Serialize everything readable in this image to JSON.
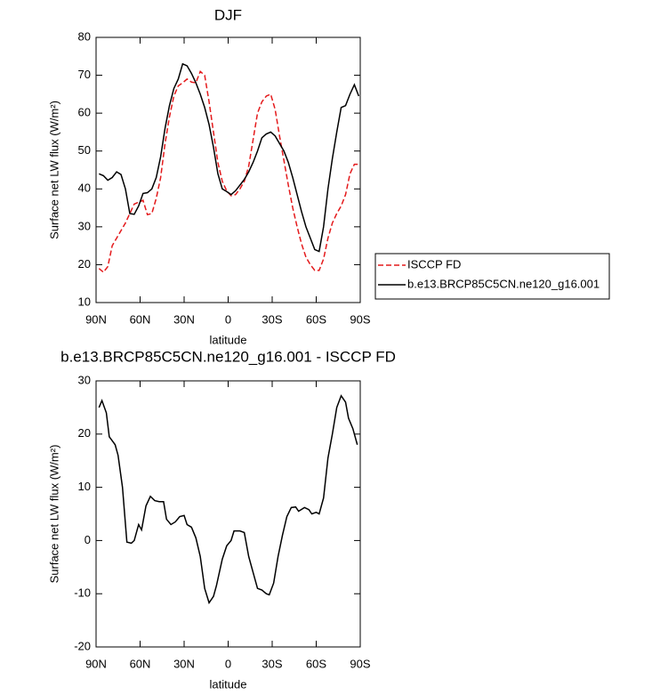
{
  "chart_data": [
    {
      "type": "line",
      "title": "DJF",
      "xlabel": "latitude",
      "ylabel": "Surface net LW flux (W/m²)",
      "xlim": [
        90,
        -90
      ],
      "xticks": [
        {
          "value": 90,
          "label": "90N"
        },
        {
          "value": 60,
          "label": "60N"
        },
        {
          "value": 30,
          "label": "30N"
        },
        0,
        {
          "value": -30,
          "label": "30S"
        },
        {
          "value": -60,
          "label": "60S"
        },
        {
          "value": -90,
          "label": "90S"
        }
      ],
      "ylim": [
        10,
        80
      ],
      "yticks": [
        10,
        20,
        30,
        40,
        50,
        60,
        70,
        80
      ],
      "legend": "right",
      "x": [
        88,
        85,
        82,
        79,
        76,
        73,
        70,
        67,
        64,
        61,
        58,
        55,
        52,
        49,
        46,
        43,
        40,
        37,
        34,
        31,
        28,
        25,
        22,
        19,
        16,
        13,
        10,
        7,
        4,
        1,
        -2,
        -5,
        -8,
        -11,
        -14,
        -17,
        -20,
        -23,
        -26,
        -29,
        -32,
        -35,
        -38,
        -41,
        -44,
        -47,
        -50,
        -53,
        -56,
        -59,
        -62,
        -65,
        -68,
        -71,
        -74,
        -77,
        -80,
        -83,
        -86,
        -89
      ],
      "series": [
        {
          "name": "ISCCP FD",
          "color": "#e41a1c",
          "dash": true,
          "values": [
            19,
            18,
            19.5,
            25,
            27,
            29,
            31,
            33.5,
            36,
            36.5,
            37,
            33.2,
            33.5,
            37.5,
            43,
            52,
            59,
            64.5,
            67.2,
            68,
            69,
            68.2,
            68,
            71,
            70,
            63,
            55,
            47,
            42,
            39.5,
            38.2,
            38.5,
            40,
            42,
            46,
            53,
            60,
            63,
            64.5,
            65,
            61,
            54,
            47.5,
            41,
            35,
            30,
            25.5,
            22,
            20,
            18.5,
            18.5,
            21.5,
            27,
            31,
            33.5,
            35.5,
            38.5,
            44,
            46.5,
            46.5
          ]
        },
        {
          "name": "b.e13.BRCP85C5CN.ne120_g16.001",
          "color": "#000000",
          "dash": false,
          "values": [
            44,
            43.5,
            42.3,
            43,
            44.5,
            43.8,
            40,
            33.5,
            33.3,
            35.5,
            38.8,
            39,
            40,
            43,
            48.5,
            56,
            62,
            66.5,
            69,
            73,
            72.5,
            70.5,
            68,
            65,
            61.5,
            57,
            51,
            44,
            40,
            39.3,
            38.5,
            39.5,
            41,
            42.5,
            44.5,
            47,
            50,
            53.5,
            54.5,
            55,
            54,
            52,
            50,
            47,
            43,
            38.5,
            34,
            30,
            27,
            24,
            23.5,
            30,
            40,
            48,
            55,
            61.5,
            62,
            65,
            67.5,
            64.5
          ]
        }
      ]
    },
    {
      "type": "line",
      "title": "b.e13.BRCP85C5CN.ne120_g16.001 - ISCCP FD",
      "xlabel": "latitude",
      "ylabel": "Surface net LW flux (W/m²)",
      "xlim": [
        90,
        -90
      ],
      "xticks": [
        {
          "value": 90,
          "label": "90N"
        },
        {
          "value": 60,
          "label": "60N"
        },
        {
          "value": 30,
          "label": "30N"
        },
        0,
        {
          "value": -30,
          "label": "30S"
        },
        {
          "value": -60,
          "label": "60S"
        },
        {
          "value": -90,
          "label": "90S"
        }
      ],
      "ylim": [
        -20,
        30
      ],
      "yticks": [
        -20,
        -10,
        0,
        10,
        20,
        30
      ],
      "x": [
        88,
        86,
        83,
        81,
        77,
        75,
        72,
        69,
        66,
        64,
        61,
        59,
        56,
        53,
        50,
        47,
        44,
        42,
        39,
        36,
        33,
        30,
        28,
        25,
        22,
        19,
        16,
        13,
        10,
        8,
        4,
        1,
        -2,
        -4,
        -8,
        -11,
        -14,
        -17,
        -20,
        -23,
        -26,
        -28,
        -31,
        -34,
        -37,
        -40,
        -43,
        -46,
        -48,
        -52,
        -55,
        -57,
        -60,
        -62,
        -65,
        -68,
        -71,
        -74,
        -77,
        -80,
        -82,
        -85,
        -88
      ],
      "series": [
        {
          "color": "#000000",
          "dash": false,
          "values": [
            25,
            26.3,
            24,
            19.5,
            18,
            16,
            10,
            -0.3,
            -0.5,
            0,
            3,
            2,
            6.5,
            8.3,
            7.5,
            7.3,
            7.3,
            4,
            3,
            3.5,
            4.5,
            4.7,
            3,
            2.5,
            0.5,
            -3,
            -9,
            -11.7,
            -10.5,
            -8.5,
            -3.5,
            -1,
            0,
            1.8,
            1.8,
            1.5,
            -3,
            -6,
            -9,
            -9.3,
            -10,
            -10.2,
            -8,
            -3,
            1,
            4.5,
            6.2,
            6.3,
            5.5,
            6.2,
            5.8,
            5,
            5.3,
            5,
            8,
            15.5,
            20,
            25,
            27.2,
            26,
            23,
            21,
            18
          ]
        }
      ]
    }
  ]
}
